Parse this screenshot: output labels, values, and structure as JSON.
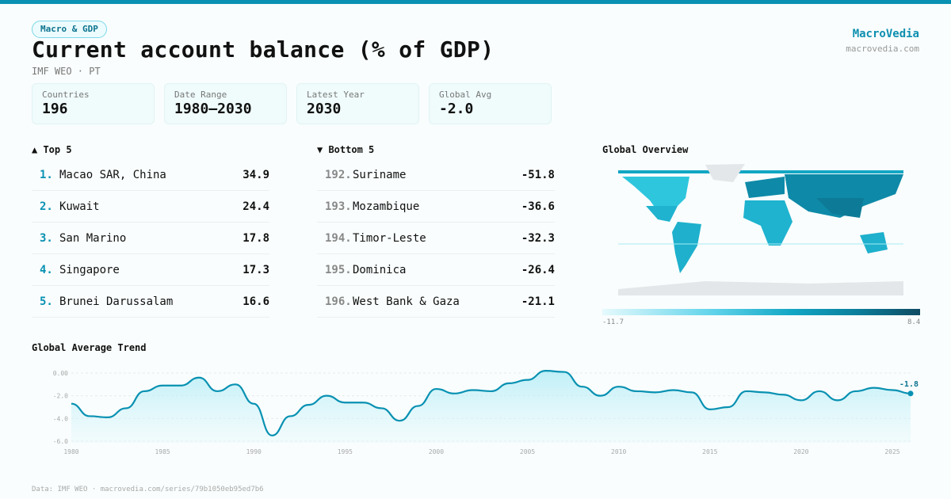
{
  "header": {
    "tag": "Macro & GDP",
    "title": "Current account balance (% of GDP)",
    "subtitle": "IMF WEO · PT",
    "brand": "MacroVedia",
    "brand_url": "macrovedia.com"
  },
  "stats": [
    {
      "label": "Countries",
      "value": "196"
    },
    {
      "label": "Date Range",
      "value": "1980–2030"
    },
    {
      "label": "Latest Year",
      "value": "2030"
    },
    {
      "label": "Global Avg",
      "value": "-2.0"
    }
  ],
  "top": {
    "title": "▲ Top 5",
    "items": [
      {
        "rank": "1.",
        "name": "Macao SAR, China",
        "value": "34.9"
      },
      {
        "rank": "2.",
        "name": "Kuwait",
        "value": "24.4"
      },
      {
        "rank": "3.",
        "name": "San Marino",
        "value": "17.8"
      },
      {
        "rank": "4.",
        "name": "Singapore",
        "value": "17.3"
      },
      {
        "rank": "5.",
        "name": "Brunei Darussalam",
        "value": "16.6"
      }
    ]
  },
  "bottom": {
    "title": "▼ Bottom 5",
    "items": [
      {
        "rank": "192.",
        "name": "Suriname",
        "value": "-51.8"
      },
      {
        "rank": "193.",
        "name": "Mozambique",
        "value": "-36.6"
      },
      {
        "rank": "194.",
        "name": "Timor-Leste",
        "value": "-32.3"
      },
      {
        "rank": "195.",
        "name": "Dominica",
        "value": "-26.4"
      },
      {
        "rank": "196.",
        "name": "West Bank & Gaza",
        "value": "-21.1"
      }
    ]
  },
  "map": {
    "title": "Global Overview",
    "legend_min": "-11.7",
    "legend_max": "8.4",
    "colors": [
      "#e6fafd",
      "#5fd3ea",
      "#12a6c4",
      "#0b7f9c",
      "#0f4b62"
    ]
  },
  "chart_data": {
    "type": "area",
    "title": "Global Average Trend",
    "xlabel": "",
    "ylabel": "",
    "x": [
      1980,
      1981,
      1982,
      1983,
      1984,
      1985,
      1986,
      1987,
      1988,
      1989,
      1990,
      1991,
      1992,
      1993,
      1994,
      1995,
      1996,
      1997,
      1998,
      1999,
      2000,
      2001,
      2002,
      2003,
      2004,
      2005,
      2006,
      2007,
      2008,
      2009,
      2010,
      2011,
      2012,
      2013,
      2014,
      2015,
      2016,
      2017,
      2018,
      2019,
      2020,
      2021,
      2022,
      2023,
      2024,
      2025,
      2026
    ],
    "y": [
      -2.7,
      -3.8,
      -3.9,
      -3.1,
      -1.6,
      -1.1,
      -1.1,
      -0.4,
      -1.6,
      -1.0,
      -2.7,
      -5.5,
      -3.8,
      -2.8,
      -2.0,
      -2.6,
      -2.6,
      -3.1,
      -4.2,
      -2.9,
      -1.4,
      -1.8,
      -1.5,
      -1.6,
      -0.9,
      -0.6,
      0.2,
      0.1,
      -1.2,
      -2.0,
      -1.2,
      -1.6,
      -1.7,
      -1.5,
      -1.7,
      -3.2,
      -3.0,
      -1.6,
      -1.7,
      -1.9,
      -2.4,
      -1.6,
      -2.4,
      -1.6,
      -1.3,
      -1.5,
      -1.8
    ],
    "yticks": [
      "0.00",
      "-2.0",
      "-4.0",
      "-6.0"
    ],
    "xticks": [
      "1980",
      "1985",
      "1990",
      "1995",
      "2000",
      "2005",
      "2010",
      "2015",
      "2020",
      "2025"
    ],
    "ylim": [
      -6.5,
      0.3
    ],
    "grid": true,
    "last_label": "-1.8",
    "color": "#0891b2"
  },
  "footer": "Data: IMF WEO · macrovedia.com/series/79b1050eb95ed7b6"
}
